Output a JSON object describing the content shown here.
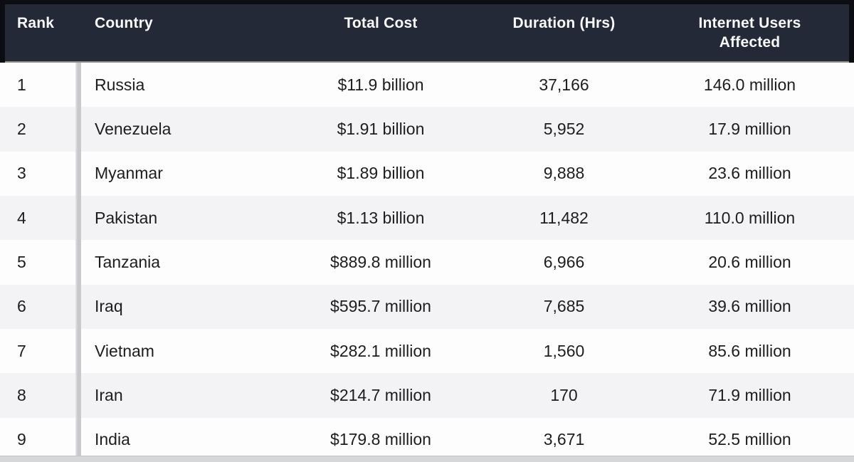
{
  "table": {
    "columns": [
      {
        "key": "rank",
        "label": "Rank"
      },
      {
        "key": "country",
        "label": "Country"
      },
      {
        "key": "total_cost",
        "label": "Total Cost"
      },
      {
        "key": "duration_hrs",
        "label": "Duration (Hrs)"
      },
      {
        "key": "users_affected",
        "label": "Internet Users Affected"
      }
    ],
    "rows": [
      {
        "rank": "1",
        "country": "Russia",
        "total_cost": "$11.9 billion",
        "duration_hrs": "37,166",
        "users_affected": "146.0 million"
      },
      {
        "rank": "2",
        "country": "Venezuela",
        "total_cost": "$1.91 billion",
        "duration_hrs": "5,952",
        "users_affected": "17.9 million"
      },
      {
        "rank": "3",
        "country": "Myanmar",
        "total_cost": "$1.89 billion",
        "duration_hrs": "9,888",
        "users_affected": "23.6 million"
      },
      {
        "rank": "4",
        "country": "Pakistan",
        "total_cost": "$1.13 billion",
        "duration_hrs": "11,482",
        "users_affected": "110.0 million"
      },
      {
        "rank": "5",
        "country": "Tanzania",
        "total_cost": "$889.8 million",
        "duration_hrs": "6,966",
        "users_affected": "20.6 million"
      },
      {
        "rank": "6",
        "country": "Iraq",
        "total_cost": "$595.7 million",
        "duration_hrs": "7,685",
        "users_affected": "39.6 million"
      },
      {
        "rank": "7",
        "country": "Vietnam",
        "total_cost": "$282.1 million",
        "duration_hrs": "1,560",
        "users_affected": "85.6 million"
      },
      {
        "rank": "8",
        "country": "Iran",
        "total_cost": "$214.7 million",
        "duration_hrs": "170",
        "users_affected": "71.9 million"
      },
      {
        "rank": "9",
        "country": "India",
        "total_cost": "$179.8 million",
        "duration_hrs": "3,671",
        "users_affected": "52.5 million"
      }
    ]
  },
  "colors": {
    "header_bg": "#242938",
    "header_edge": "#0c0d12",
    "header_text": "#fafafa",
    "row_bg": "#fdfdfd",
    "row_alt_bg": "#f3f3f5",
    "divider": "#c9cacd",
    "body_text": "#1d1d1f"
  }
}
